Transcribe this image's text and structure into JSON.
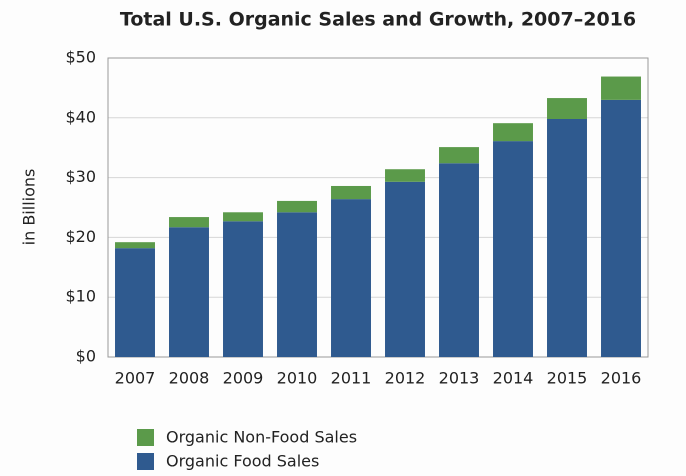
{
  "chart_data": {
    "type": "stacked-bar",
    "title": "Total U.S. Organic Sales and Growth, 2007–2016",
    "y_label": "in Billions",
    "categories": [
      "2007",
      "2008",
      "2009",
      "2010",
      "2011",
      "2012",
      "2013",
      "2014",
      "2015",
      "2016"
    ],
    "series": [
      {
        "name": "Organic Food Sales",
        "color": "#2f5a8f",
        "values": [
          18.2,
          21.7,
          22.7,
          24.2,
          26.4,
          29.3,
          32.4,
          36.1,
          39.8,
          43.0
        ]
      },
      {
        "name": "Organic Non-Food Sales",
        "color": "#5b9a4a",
        "values": [
          1.0,
          1.7,
          1.5,
          1.9,
          2.2,
          2.1,
          2.7,
          3.0,
          3.5,
          3.9
        ]
      }
    ],
    "ylim": [
      0,
      50
    ],
    "yticks": [
      {
        "value": 0,
        "label": "$0"
      },
      {
        "value": 10,
        "label": "$10"
      },
      {
        "value": 20,
        "label": "$20"
      },
      {
        "value": 30,
        "label": "$30"
      },
      {
        "value": 40,
        "label": "$40"
      },
      {
        "value": 50,
        "label": "$50"
      }
    ],
    "grid": true
  }
}
